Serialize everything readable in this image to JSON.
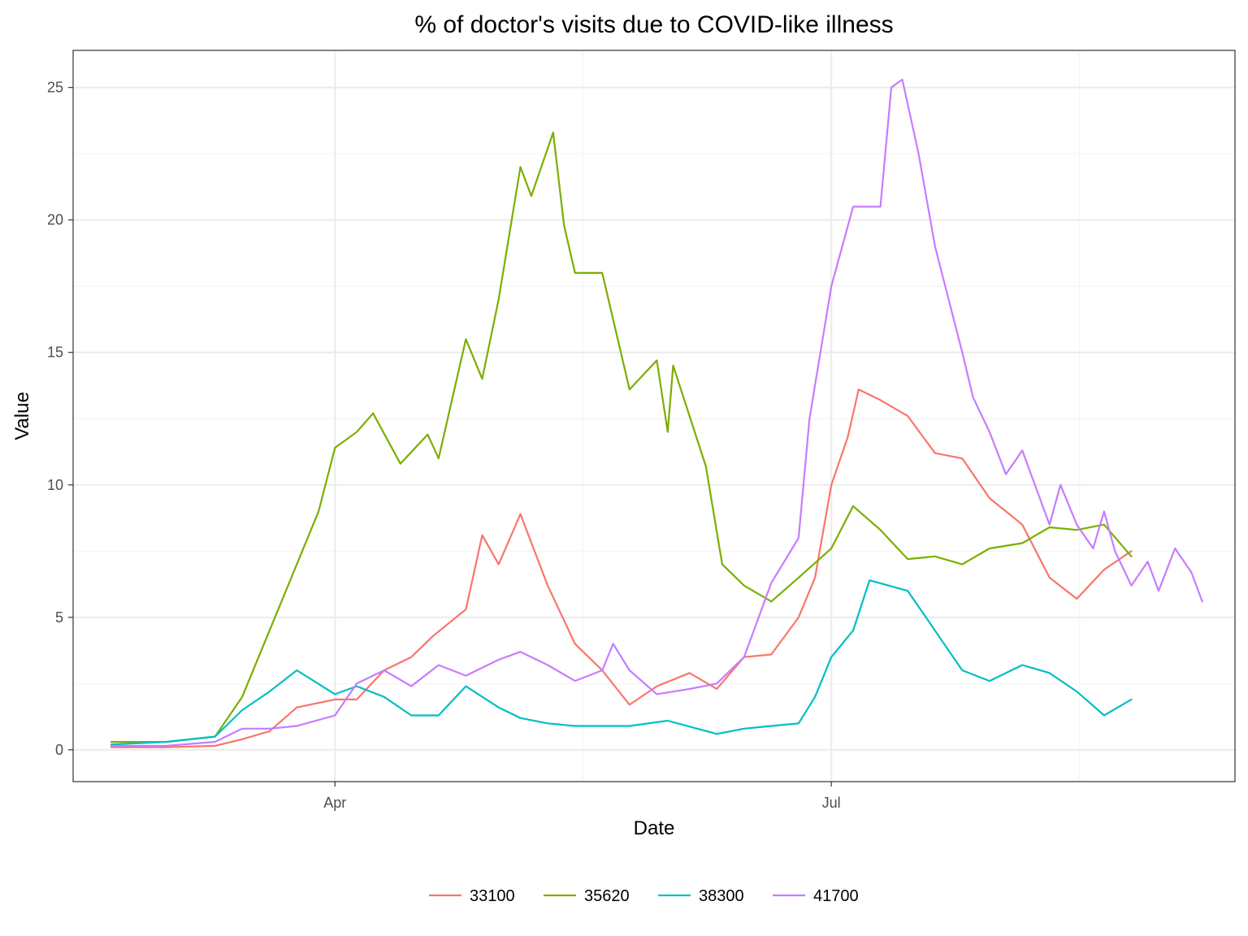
{
  "chart_data": {
    "type": "line",
    "title": "% of doctor's visits due to COVID-like illness",
    "xlabel": "Date",
    "ylabel": "Value",
    "x_ticks": [
      {
        "label": "Apr",
        "date": "2020-04-01"
      },
      {
        "label": "Jul",
        "date": "2020-07-01"
      }
    ],
    "xlim": [
      "2020-02-13",
      "2020-09-13"
    ],
    "ylim": [
      -1.2,
      26.4
    ],
    "y_ticks": [
      0,
      5,
      10,
      15,
      20,
      25
    ],
    "grid": true,
    "legend_position": "bottom",
    "series": [
      {
        "name": "33100",
        "color": "#F8766D",
        "points": [
          [
            "2020-02-20",
            0.1
          ],
          [
            "2020-03-01",
            0.1
          ],
          [
            "2020-03-10",
            0.15
          ],
          [
            "2020-03-15",
            0.4
          ],
          [
            "2020-03-20",
            0.7
          ],
          [
            "2020-03-25",
            1.6
          ],
          [
            "2020-04-01",
            1.9
          ],
          [
            "2020-04-05",
            1.9
          ],
          [
            "2020-04-10",
            3.0
          ],
          [
            "2020-04-15",
            3.5
          ],
          [
            "2020-04-19",
            4.3
          ],
          [
            "2020-04-25",
            5.3
          ],
          [
            "2020-04-28",
            8.1
          ],
          [
            "2020-05-01",
            7.0
          ],
          [
            "2020-05-05",
            8.9
          ],
          [
            "2020-05-10",
            6.2
          ],
          [
            "2020-05-15",
            4.0
          ],
          [
            "2020-05-20",
            3.0
          ],
          [
            "2020-05-25",
            1.7
          ],
          [
            "2020-05-30",
            2.4
          ],
          [
            "2020-06-05",
            2.9
          ],
          [
            "2020-06-10",
            2.3
          ],
          [
            "2020-06-15",
            3.5
          ],
          [
            "2020-06-20",
            3.6
          ],
          [
            "2020-06-25",
            5.0
          ],
          [
            "2020-06-28",
            6.5
          ],
          [
            "2020-07-01",
            10.0
          ],
          [
            "2020-07-04",
            11.8
          ],
          [
            "2020-07-06",
            13.6
          ],
          [
            "2020-07-10",
            13.2
          ],
          [
            "2020-07-15",
            12.6
          ],
          [
            "2020-07-20",
            11.2
          ],
          [
            "2020-07-25",
            11.0
          ],
          [
            "2020-07-30",
            9.5
          ],
          [
            "2020-08-05",
            8.5
          ],
          [
            "2020-08-10",
            6.5
          ],
          [
            "2020-08-15",
            5.7
          ],
          [
            "2020-08-20",
            6.8
          ],
          [
            "2020-08-25",
            7.5
          ]
        ]
      },
      {
        "name": "35620",
        "color": "#7CAE00",
        "points": [
          [
            "2020-02-20",
            0.3
          ],
          [
            "2020-03-01",
            0.3
          ],
          [
            "2020-03-10",
            0.5
          ],
          [
            "2020-03-15",
            2.0
          ],
          [
            "2020-03-20",
            4.5
          ],
          [
            "2020-03-25",
            7.0
          ],
          [
            "2020-03-29",
            9.0
          ],
          [
            "2020-04-01",
            11.4
          ],
          [
            "2020-04-05",
            12.0
          ],
          [
            "2020-04-08",
            12.7
          ],
          [
            "2020-04-13",
            10.8
          ],
          [
            "2020-04-18",
            11.9
          ],
          [
            "2020-04-20",
            11.0
          ],
          [
            "2020-04-25",
            15.5
          ],
          [
            "2020-04-28",
            14.0
          ],
          [
            "2020-05-01",
            17.0
          ],
          [
            "2020-05-05",
            22.0
          ],
          [
            "2020-05-07",
            20.9
          ],
          [
            "2020-05-11",
            23.3
          ],
          [
            "2020-05-13",
            19.8
          ],
          [
            "2020-05-15",
            18.0
          ],
          [
            "2020-05-20",
            18.0
          ],
          [
            "2020-05-25",
            13.6
          ],
          [
            "2020-05-30",
            14.7
          ],
          [
            "2020-06-01",
            12.0
          ],
          [
            "2020-06-02",
            14.5
          ],
          [
            "2020-06-08",
            10.7
          ],
          [
            "2020-06-11",
            7.0
          ],
          [
            "2020-06-15",
            6.2
          ],
          [
            "2020-06-20",
            5.6
          ],
          [
            "2020-06-25",
            6.5
          ],
          [
            "2020-07-01",
            7.6
          ],
          [
            "2020-07-05",
            9.2
          ],
          [
            "2020-07-10",
            8.3
          ],
          [
            "2020-07-15",
            7.2
          ],
          [
            "2020-07-20",
            7.3
          ],
          [
            "2020-07-25",
            7.0
          ],
          [
            "2020-07-30",
            7.6
          ],
          [
            "2020-08-05",
            7.8
          ],
          [
            "2020-08-10",
            8.4
          ],
          [
            "2020-08-15",
            8.3
          ],
          [
            "2020-08-20",
            8.5
          ],
          [
            "2020-08-25",
            7.3
          ]
        ]
      },
      {
        "name": "38300",
        "color": "#00BFC4",
        "points": [
          [
            "2020-02-20",
            0.2
          ],
          [
            "2020-03-01",
            0.3
          ],
          [
            "2020-03-10",
            0.5
          ],
          [
            "2020-03-15",
            1.5
          ],
          [
            "2020-03-20",
            2.2
          ],
          [
            "2020-03-25",
            3.0
          ],
          [
            "2020-04-01",
            2.1
          ],
          [
            "2020-04-05",
            2.4
          ],
          [
            "2020-04-10",
            2.0
          ],
          [
            "2020-04-15",
            1.3
          ],
          [
            "2020-04-20",
            1.3
          ],
          [
            "2020-04-25",
            2.4
          ],
          [
            "2020-05-01",
            1.6
          ],
          [
            "2020-05-05",
            1.2
          ],
          [
            "2020-05-10",
            1.0
          ],
          [
            "2020-05-15",
            0.9
          ],
          [
            "2020-05-20",
            0.9
          ],
          [
            "2020-05-25",
            0.9
          ],
          [
            "2020-06-01",
            1.1
          ],
          [
            "2020-06-10",
            0.6
          ],
          [
            "2020-06-15",
            0.8
          ],
          [
            "2020-06-20",
            0.9
          ],
          [
            "2020-06-25",
            1.0
          ],
          [
            "2020-06-28",
            2.0
          ],
          [
            "2020-07-01",
            3.5
          ],
          [
            "2020-07-05",
            4.5
          ],
          [
            "2020-07-08",
            6.4
          ],
          [
            "2020-07-15",
            6.0
          ],
          [
            "2020-07-20",
            4.5
          ],
          [
            "2020-07-25",
            3.0
          ],
          [
            "2020-07-30",
            2.6
          ],
          [
            "2020-08-05",
            3.2
          ],
          [
            "2020-08-10",
            2.9
          ],
          [
            "2020-08-15",
            2.2
          ],
          [
            "2020-08-20",
            1.3
          ],
          [
            "2020-08-25",
            1.9
          ]
        ]
      },
      {
        "name": "41700",
        "color": "#C77CFF",
        "points": [
          [
            "2020-02-20",
            0.15
          ],
          [
            "2020-03-01",
            0.15
          ],
          [
            "2020-03-10",
            0.3
          ],
          [
            "2020-03-15",
            0.8
          ],
          [
            "2020-03-20",
            0.8
          ],
          [
            "2020-03-25",
            0.9
          ],
          [
            "2020-04-01",
            1.3
          ],
          [
            "2020-04-05",
            2.5
          ],
          [
            "2020-04-10",
            3.0
          ],
          [
            "2020-04-15",
            2.4
          ],
          [
            "2020-04-20",
            3.2
          ],
          [
            "2020-04-25",
            2.8
          ],
          [
            "2020-05-01",
            3.4
          ],
          [
            "2020-05-05",
            3.7
          ],
          [
            "2020-05-10",
            3.2
          ],
          [
            "2020-05-15",
            2.6
          ],
          [
            "2020-05-20",
            3.0
          ],
          [
            "2020-05-22",
            4.0
          ],
          [
            "2020-05-25",
            3.0
          ],
          [
            "2020-05-30",
            2.1
          ],
          [
            "2020-06-05",
            2.3
          ],
          [
            "2020-06-10",
            2.5
          ],
          [
            "2020-06-15",
            3.5
          ],
          [
            "2020-06-20",
            6.3
          ],
          [
            "2020-06-25",
            8.0
          ],
          [
            "2020-06-27",
            12.5
          ],
          [
            "2020-07-01",
            17.5
          ],
          [
            "2020-07-05",
            20.5
          ],
          [
            "2020-07-10",
            20.5
          ],
          [
            "2020-07-12",
            25.0
          ],
          [
            "2020-07-14",
            25.3
          ],
          [
            "2020-07-17",
            22.5
          ],
          [
            "2020-07-20",
            19.0
          ],
          [
            "2020-07-25",
            15.0
          ],
          [
            "2020-07-27",
            13.3
          ],
          [
            "2020-07-30",
            12.0
          ],
          [
            "2020-08-02",
            10.4
          ],
          [
            "2020-08-05",
            11.3
          ],
          [
            "2020-08-10",
            8.5
          ],
          [
            "2020-08-12",
            10.0
          ],
          [
            "2020-08-15",
            8.5
          ],
          [
            "2020-08-18",
            7.6
          ],
          [
            "2020-08-20",
            9.0
          ],
          [
            "2020-08-22",
            7.5
          ],
          [
            "2020-08-25",
            6.2
          ],
          [
            "2020-08-28",
            7.1
          ],
          [
            "2020-08-30",
            6.0
          ],
          [
            "2020-09-02",
            7.6
          ],
          [
            "2020-09-05",
            6.7
          ],
          [
            "2020-09-07",
            5.6
          ]
        ]
      }
    ]
  }
}
